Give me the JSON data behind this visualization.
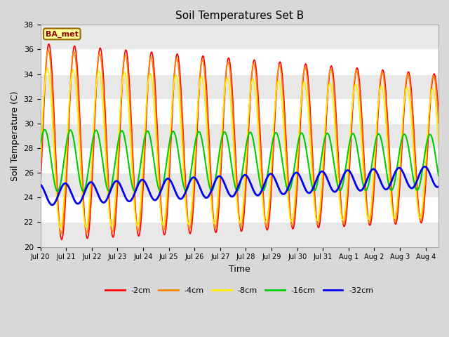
{
  "title": "Soil Temperatures Set B",
  "xlabel": "Time",
  "ylabel": "Soil Temperature (C)",
  "ylim": [
    20,
    38
  ],
  "yticks": [
    20,
    22,
    24,
    26,
    28,
    30,
    32,
    34,
    36,
    38
  ],
  "annotation": "BA_met",
  "legend_entries": [
    "-2cm",
    "-4cm",
    "-8cm",
    "-16cm",
    "-32cm"
  ],
  "line_colors": [
    "#ff0000",
    "#ff8800",
    "#ffee00",
    "#00cc00",
    "#0000ee"
  ],
  "line_widths": [
    1.2,
    1.2,
    1.2,
    1.5,
    2.0
  ],
  "xtick_labels": [
    "Jul 20",
    "Jul 21",
    "Jul 22",
    "Jul 23",
    "Jul 24",
    "Jul 25",
    "Jul 26",
    "Jul 27",
    "Jul 28",
    "Jul 29",
    "Jul 30",
    "Jul 31",
    "Aug 1",
    "Aug 2",
    "Aug 3",
    "Aug 4"
  ],
  "fig_bg": "#d8d8d8",
  "plot_bg": "#e8e8e8",
  "band_color_dark": "#d0d0d0",
  "band_color_light": "#e8e8e8"
}
